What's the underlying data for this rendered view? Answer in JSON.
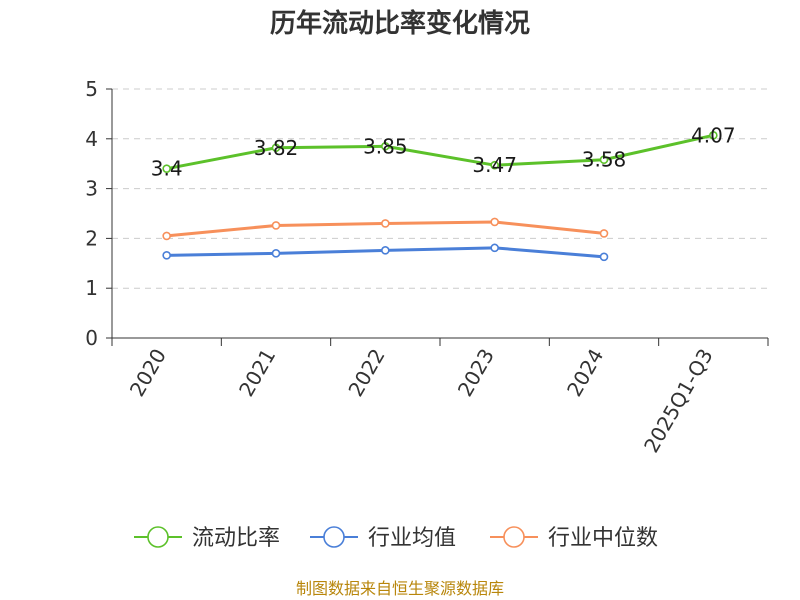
{
  "chart_data": {
    "type": "line",
    "title": "历年流动比率变化情况",
    "categories": [
      "2020",
      "2021",
      "2022",
      "2023",
      "2024",
      "2025Q1-Q3"
    ],
    "ylim": [
      0,
      5
    ],
    "yticks": [
      "0",
      "1",
      "2",
      "3",
      "4",
      "5"
    ],
    "grid": true,
    "legend_position": "bottom",
    "series": [
      {
        "name": "流动比率",
        "color": "#5cc12a",
        "values": [
          3.4,
          3.82,
          3.85,
          3.47,
          3.58,
          4.07
        ],
        "labels": [
          "3.4",
          "3.82",
          "3.85",
          "3.47",
          "3.58",
          "4.07"
        ]
      },
      {
        "name": "行业均值",
        "color": "#4a7fd8",
        "values": [
          1.66,
          1.7,
          1.76,
          1.81,
          1.63,
          null
        ]
      },
      {
        "name": "行业中位数",
        "color": "#f7905b",
        "values": [
          2.05,
          2.26,
          2.3,
          2.33,
          2.1,
          null
        ]
      }
    ]
  },
  "source": "制图数据来自恒生聚源数据库"
}
